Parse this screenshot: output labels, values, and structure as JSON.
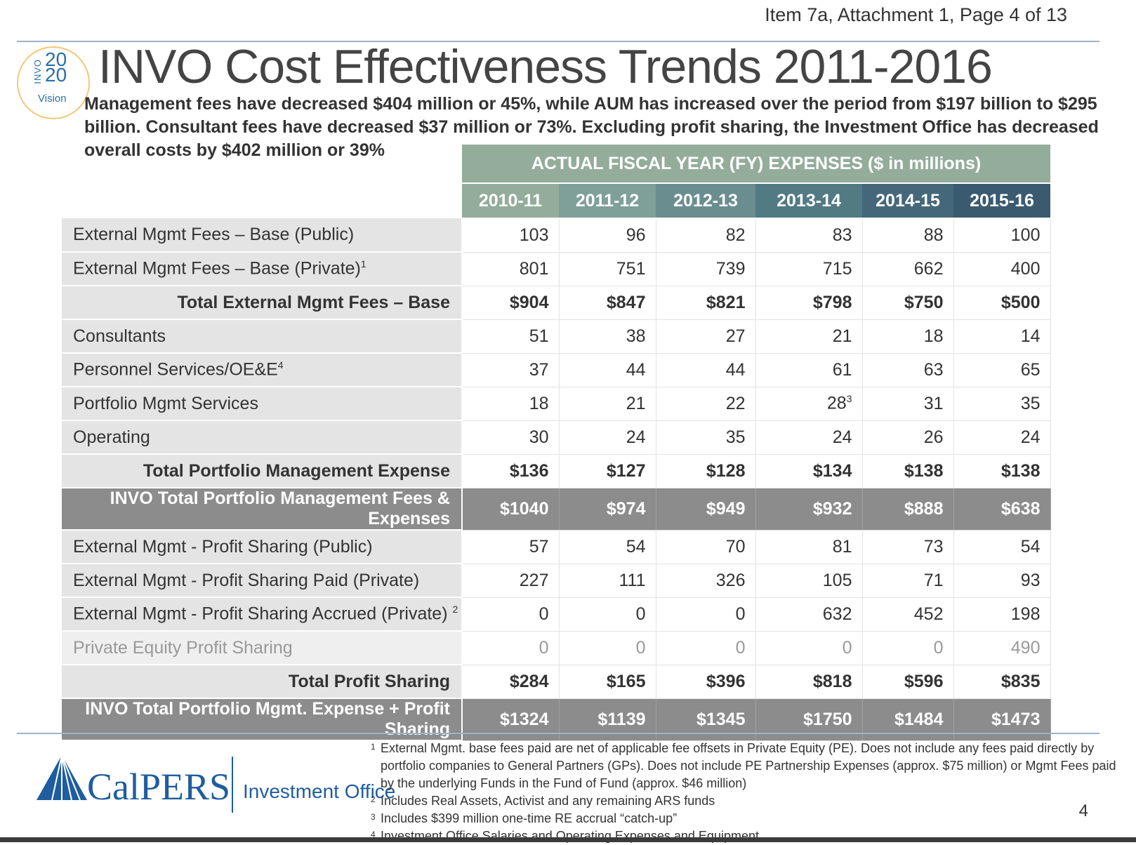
{
  "header": {
    "item_ref": "Item 7a, Attachment 1, Page 4 of 13",
    "logo": {
      "left_text": "INVO",
      "year_top": "20",
      "year_bottom": "20",
      "vision": "Vision"
    },
    "title": "INVO Cost Effectiveness Trends 2011-2016",
    "subtitle": "Management fees have decreased $404 million or 45%, while AUM has increased over the period from $197 billion to $295 billion. Consultant fees have decreased $37 million or 73%.  Excluding profit sharing, the Investment Office has decreased overall costs by $402 million or 39%"
  },
  "table": {
    "group_header": "ACTUAL FISCAL YEAR (FY) EXPENSES ($ in millions)",
    "years": [
      "2010-11",
      "2011-12",
      "2012-13",
      "2013-14",
      "2014-15",
      "2015-16"
    ],
    "year_colors": [
      "#93ad9a",
      "#7f9f99",
      "#6a8e8f",
      "#527a83",
      "#44687a",
      "#3a5a70"
    ],
    "rows": [
      {
        "label": "External Mgmt Fees – Base (Public)",
        "sup": "",
        "values": [
          "103",
          "96",
          "82",
          "83",
          "88",
          "100"
        ],
        "style": "normal"
      },
      {
        "label": "External Mgmt Fees – Base (Private)",
        "sup": "1",
        "values": [
          "801",
          "751",
          "739",
          "715",
          "662",
          "400"
        ],
        "style": "normal"
      },
      {
        "label": "Total External Mgmt Fees – Base",
        "sup": "",
        "values": [
          "$904",
          "$847",
          "$821",
          "$798",
          "$750",
          "$500"
        ],
        "style": "total"
      },
      {
        "label": "Consultants",
        "sup": "",
        "values": [
          "51",
          "38",
          "27",
          "21",
          "18",
          "14"
        ],
        "style": "normal"
      },
      {
        "label": "Personnel Services/OE&E",
        "sup": "4",
        "values": [
          "37",
          "44",
          "44",
          "61",
          "63",
          "65"
        ],
        "style": "normal"
      },
      {
        "label": "Portfolio Mgmt Services",
        "sup": "",
        "values": [
          "18",
          "21",
          "22",
          "28",
          "31",
          "35"
        ],
        "style": "normal",
        "value_sup": {
          "3": "3"
        }
      },
      {
        "label": "Operating",
        "sup": "",
        "values": [
          "30",
          "24",
          "35",
          "24",
          "26",
          "24"
        ],
        "style": "normal"
      },
      {
        "label": "Total Portfolio Management Expense",
        "sup": "",
        "values": [
          "$136",
          "$127",
          "$128",
          "$134",
          "$138",
          "$138"
        ],
        "style": "total"
      },
      {
        "label": "INVO Total Portfolio Management Fees & Expenses",
        "sup": "",
        "values": [
          "$1040",
          "$974",
          "$949",
          "$932",
          "$888",
          "$638"
        ],
        "style": "dark"
      },
      {
        "label": "External Mgmt - Profit Sharing (Public)",
        "sup": "",
        "values": [
          "57",
          "54",
          "70",
          "81",
          "73",
          "54"
        ],
        "style": "normal"
      },
      {
        "label": "External Mgmt - Profit Sharing Paid (Private)",
        "sup": "",
        "values": [
          "227",
          "111",
          "326",
          "105",
          "71",
          "93"
        ],
        "style": "normal"
      },
      {
        "label": "External Mgmt - Profit Sharing Accrued (Private) ",
        "sup": "2",
        "values": [
          "0",
          "0",
          "0",
          "632",
          "452",
          "198"
        ],
        "style": "normal"
      },
      {
        "label": "Private Equity Profit Sharing",
        "sup": "",
        "values": [
          "0",
          "0",
          "0",
          "0",
          "0",
          "490"
        ],
        "style": "pe"
      },
      {
        "label": "Total Profit Sharing",
        "sup": "",
        "values": [
          "$284",
          "$165",
          "$396",
          "$818",
          "$596",
          "$835"
        ],
        "style": "total"
      },
      {
        "label": "INVO Total Portfolio Mgmt. Expense + Profit Sharing",
        "sup": "",
        "values": [
          "$1324",
          "$1139",
          "$1345",
          "$1750",
          "$1484",
          "$1473"
        ],
        "style": "dark"
      }
    ]
  },
  "footer": {
    "brand": "CalPERS",
    "office": "Investment Office",
    "page_number": "4",
    "footnotes": [
      {
        "mark": "1",
        "text": "External Mgmt. base fees paid are net of applicable fee offsets in Private Equity (PE). Does not include any fees paid  directly by portfolio companies to General Partners (GPs). Does not include PE Partnership Expenses (approx. $75 million) or Mgmt Fees paid by the underlying Funds in the Fund of Fund (approx. $46 million)"
      },
      {
        "mark": "2",
        "text": "Includes Real Assets, Activist and any remaining ARS funds"
      },
      {
        "mark": "3",
        "text": "Includes $399 million one-time RE accrual “catch-up”"
      },
      {
        "mark": "4",
        "text": "Investment Office Salaries and Operating Expenses and Equipment"
      }
    ]
  }
}
